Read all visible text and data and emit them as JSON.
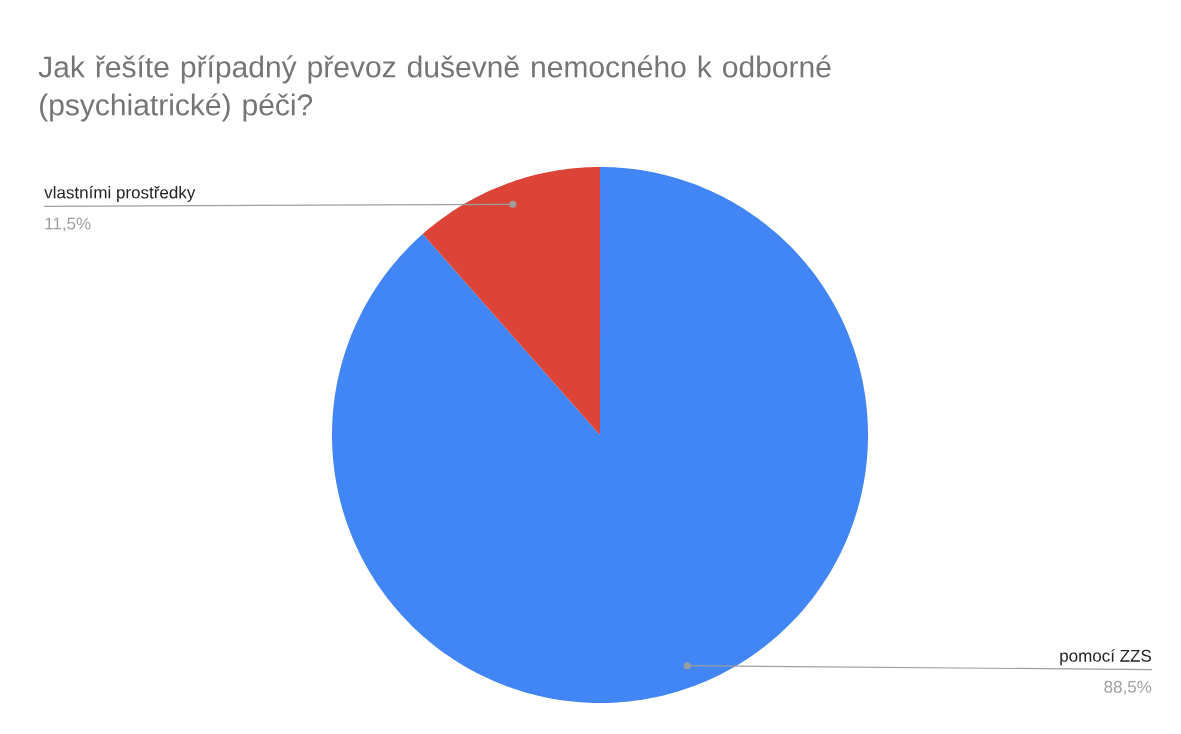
{
  "chart_data": {
    "type": "pie",
    "title": "Jak řešíte případný převoz duševně nemocného k odborné (psychiatrické) péči?",
    "categories": [
      "pomocí ZZS",
      "vlastními prostředky"
    ],
    "values": [
      88.5,
      11.5
    ],
    "colors": [
      "#4285f4",
      "#db4437"
    ],
    "value_labels": [
      "88,5%",
      "11,5%"
    ]
  }
}
